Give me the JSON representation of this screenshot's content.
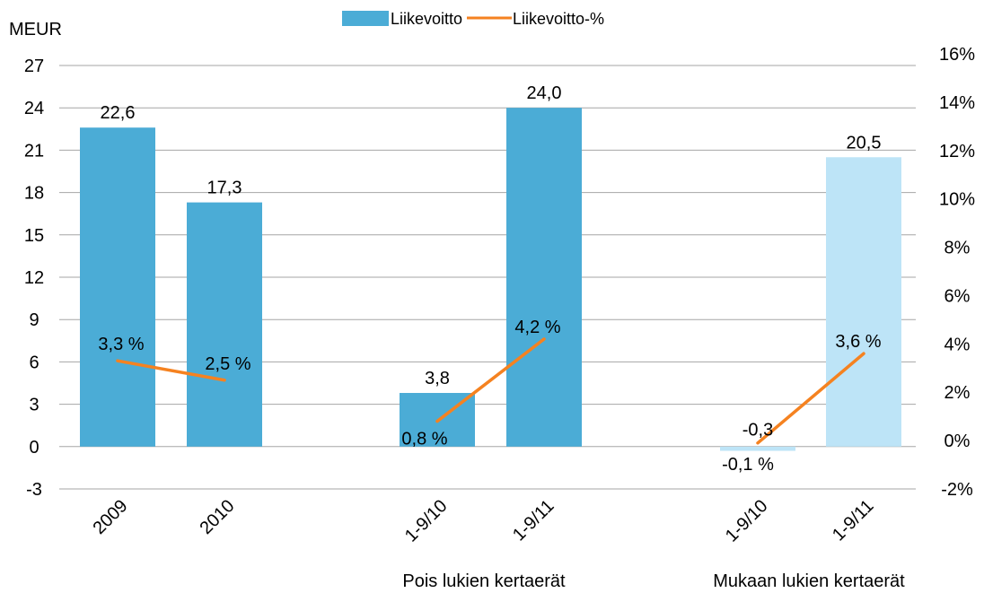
{
  "chart_data": {
    "type": "bar",
    "title": "",
    "ylabel": "MEUR",
    "y2label": "",
    "ylim": [
      -3,
      27
    ],
    "yticks": [
      27,
      24,
      21,
      18,
      15,
      12,
      9,
      6,
      3,
      0,
      -3
    ],
    "y2lim": [
      -2,
      16
    ],
    "y2ticks": [
      "16%",
      "14%",
      "12%",
      "10%",
      "8%",
      "6%",
      "4%",
      "2%",
      "0%",
      "-2%"
    ],
    "grid": true,
    "legend_position": "top",
    "categories": [
      "2009",
      "2010",
      "1-9/10",
      "1-9/11",
      "1-9/10",
      "1-9/11"
    ],
    "category_groups": [
      "",
      "",
      "Pois lukien kertaerät",
      "Pois lukien kertaerät",
      "Mukaan lukien kertaerät",
      "Mukaan lukien kertaerät"
    ],
    "group_labels": [
      "Pois lukien kertaerät",
      "Mukaan lukien kertaerät"
    ],
    "series": [
      {
        "name": "Liikevoitto",
        "kind": "bar",
        "axis": "left",
        "values": [
          22.6,
          17.3,
          3.8,
          24.0,
          -0.3,
          20.5
        ],
        "labels": [
          "22,6",
          "17,3",
          "3,8",
          "24,0",
          "-0,3",
          "20,5"
        ],
        "colors": [
          "#4bacd6",
          "#4bacd6",
          "#4bacd6",
          "#4bacd6",
          "#bde4f7",
          "#bde4f7"
        ]
      },
      {
        "name": "Liikevoitto-%",
        "kind": "line",
        "axis": "right",
        "segments": [
          [
            0,
            1
          ],
          [
            2,
            3
          ],
          [
            4,
            5
          ]
        ],
        "values": [
          3.3,
          2.5,
          0.8,
          4.2,
          -0.1,
          3.6
        ],
        "labels": [
          "3,3 %",
          "2,5 %",
          "0,8 %",
          "4,2 %",
          "-0,1 %",
          "3,6 %"
        ],
        "color": "#f58220"
      }
    ]
  }
}
